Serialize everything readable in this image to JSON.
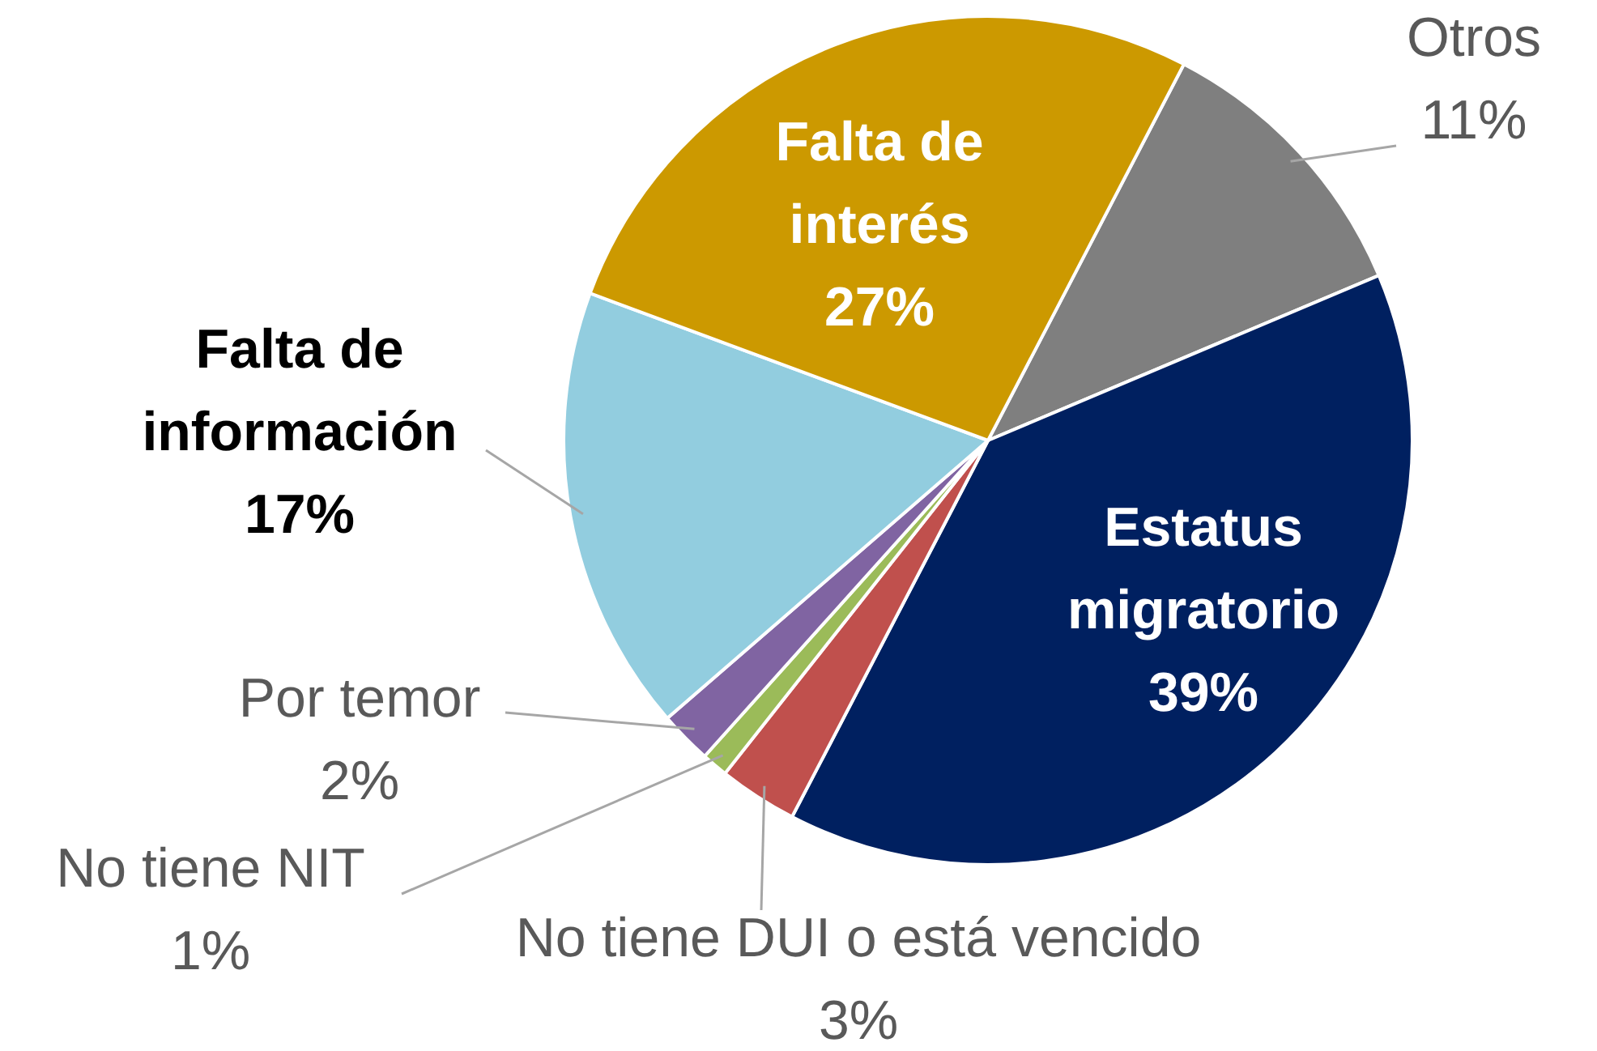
{
  "chart_data": {
    "type": "pie",
    "categories": [
      "Otros",
      "Estatus migratorio",
      "No tiene DUI o está vencido",
      "No tiene NIT",
      "Por temor",
      "Falta de información",
      "Falta de interés"
    ],
    "values": [
      11,
      39,
      3,
      1,
      2,
      17,
      27
    ],
    "value_labels": [
      "11%",
      "39%",
      "3%",
      "1%",
      "2%",
      "17%",
      "27%"
    ],
    "colors": [
      "#7f7f7f",
      "#002060",
      "#c0504d",
      "#9bbb59",
      "#8064a2",
      "#92cddf",
      "#cc9900"
    ]
  }
}
